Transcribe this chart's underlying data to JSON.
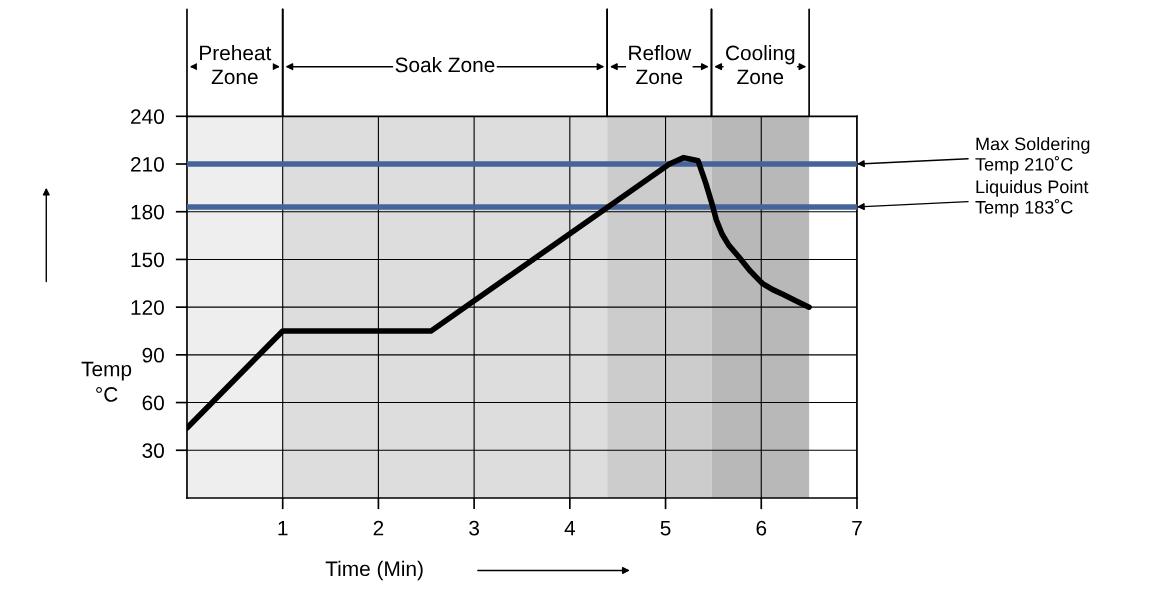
{
  "chart_data": {
    "type": "line",
    "xlabel": "Time (Min)",
    "ylabel": "Temp\n°C",
    "x": [
      0,
      1,
      2.55,
      5.04,
      5.19,
      5.34,
      5.42,
      5.49,
      5.53,
      5.59,
      5.66,
      5.76,
      5.88,
      6.01,
      6.12,
      6.23,
      6.36,
      6.5
    ],
    "series": [
      {
        "color": "#000000",
        "values": [
          44,
          105,
          105,
          210,
          214,
          212,
          198,
          184,
          175,
          166,
          159,
          152,
          143,
          135,
          131,
          128,
          124,
          120
        ]
      }
    ],
    "xlim": [
      0,
      7
    ],
    "xticks": [
      1,
      2,
      3,
      4,
      5,
      6,
      7
    ],
    "ylim": [
      0,
      240
    ],
    "yticks": [
      30,
      60,
      90,
      120,
      150,
      180,
      210,
      240
    ],
    "bands": [
      {
        "axis": "x",
        "from": 0,
        "to": 1,
        "label": "Preheat\nZone",
        "color": "#eeeeee"
      },
      {
        "axis": "x",
        "from": 1,
        "to": 4.39,
        "label": "Soak Zone",
        "color": "#dddddd"
      },
      {
        "axis": "x",
        "from": 4.39,
        "to": 5.48,
        "label": "Reflow\nZone",
        "color": "#cccccc"
      },
      {
        "axis": "x",
        "from": 5.48,
        "to": 6.5,
        "label": "Cooling\nZone",
        "color": "#b8b8b8"
      }
    ],
    "ref_lines": [
      {
        "axis": "y",
        "value": 210,
        "label": "Max Soldering\nTemp 210˚C",
        "color": "#46639a"
      },
      {
        "axis": "y",
        "value": 183,
        "label": "Liquidus Point\nTemp 183˚C",
        "color": "#46639a"
      }
    ],
    "grid": true,
    "legend": false,
    "marker": "none",
    "line_style": "solid"
  }
}
